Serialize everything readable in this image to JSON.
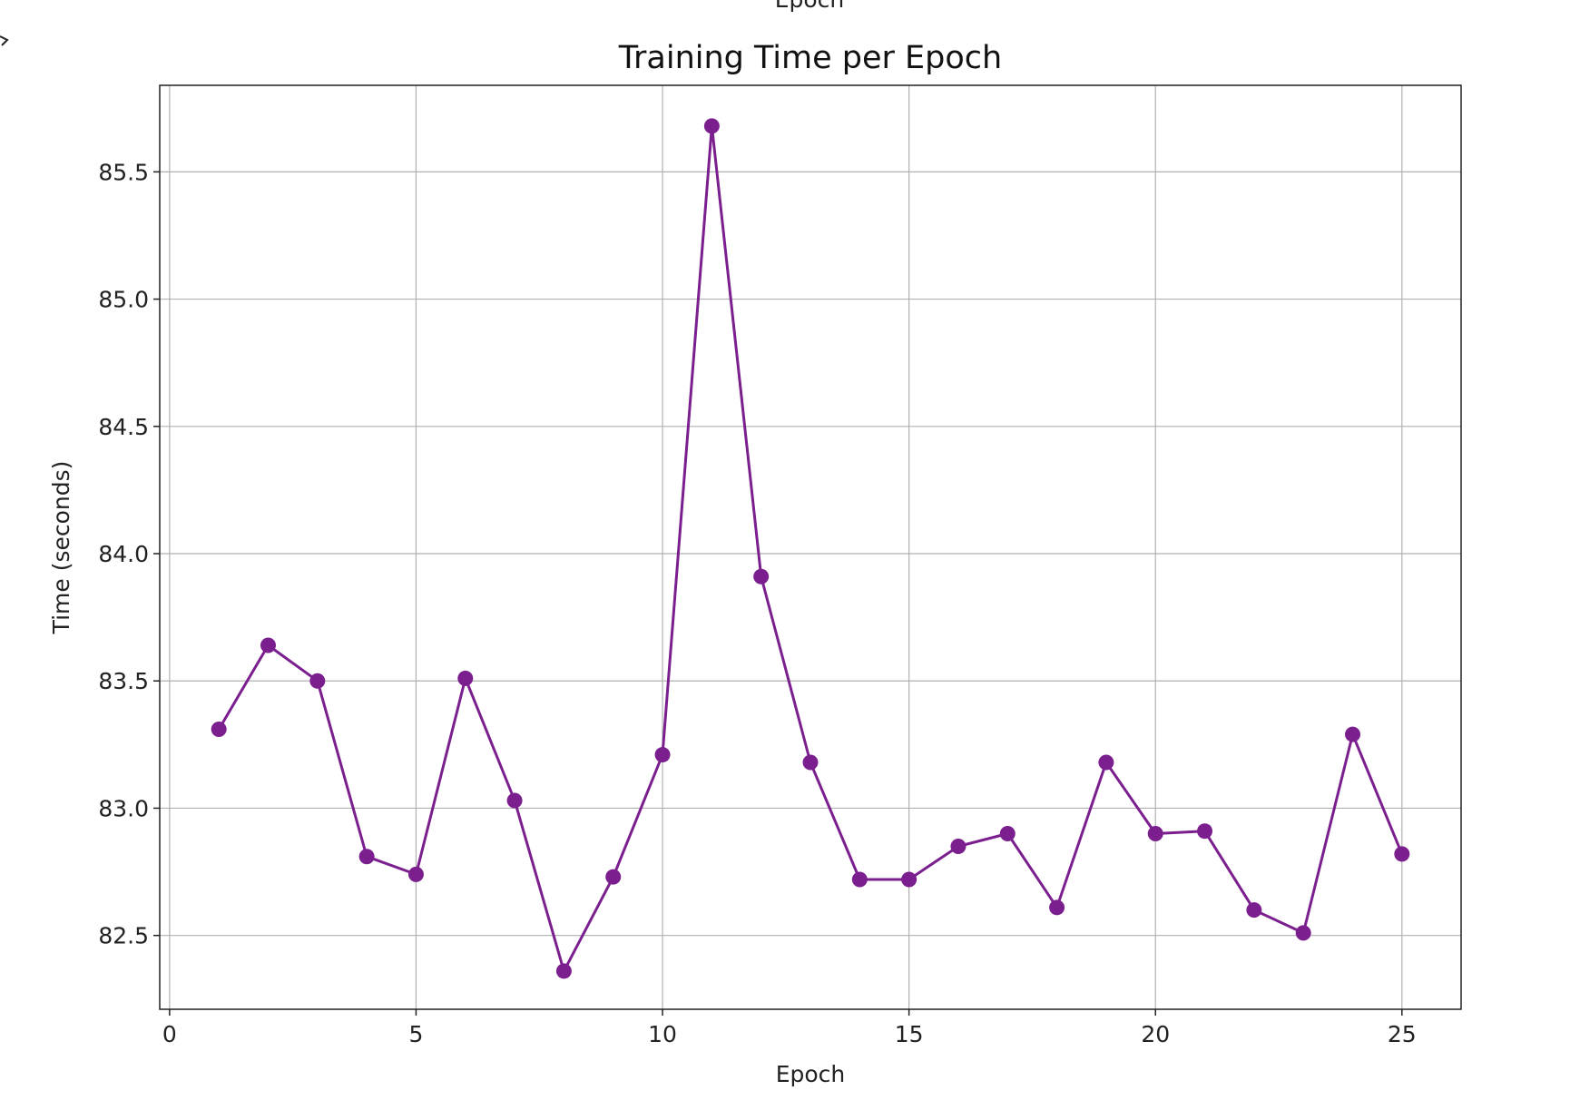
{
  "chart_data": {
    "type": "line",
    "title": "Training Time per Epoch",
    "top_label": "Epoch",
    "xlabel": "Epoch",
    "ylabel": "Time (seconds)",
    "xlim": [
      -0.2,
      26.2
    ],
    "ylim": [
      82.21,
      85.84
    ],
    "xticks": [
      0,
      5,
      10,
      15,
      20,
      25
    ],
    "yticks": [
      82.5,
      83.0,
      83.5,
      84.0,
      84.5,
      85.0,
      85.5
    ],
    "xtick_labels": [
      "0",
      "5",
      "10",
      "15",
      "20",
      "25"
    ],
    "ytick_labels": [
      "82.5",
      "83.0",
      "83.5",
      "84.0",
      "84.5",
      "85.0",
      "85.5"
    ],
    "grid": true,
    "color": "#7b1f8f",
    "series": [
      {
        "x": [
          1,
          2,
          3,
          4,
          5,
          6,
          7,
          8,
          9,
          10,
          11,
          12,
          13,
          14,
          15,
          16,
          17,
          18,
          19,
          20,
          21,
          22,
          23,
          24,
          25
        ],
        "values": [
          83.31,
          83.64,
          83.5,
          82.81,
          82.74,
          83.51,
          83.03,
          82.36,
          82.73,
          83.21,
          85.68,
          83.91,
          83.18,
          82.72,
          82.72,
          82.85,
          82.9,
          82.61,
          83.18,
          82.9,
          82.91,
          82.6,
          82.51,
          83.29,
          82.82
        ]
      }
    ]
  }
}
